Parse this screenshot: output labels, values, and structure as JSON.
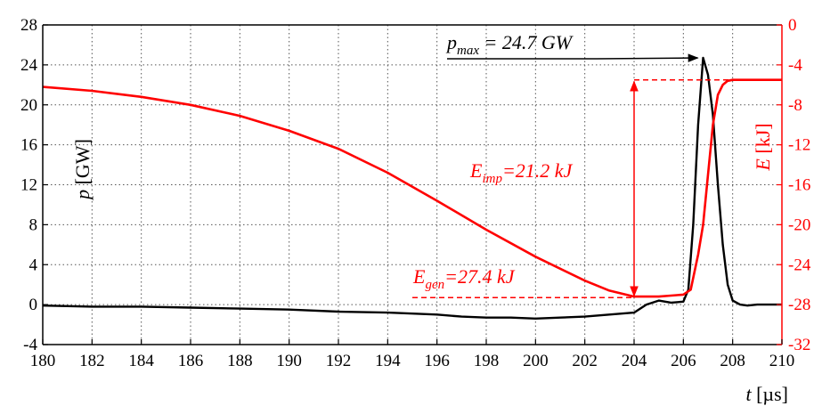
{
  "chart_data": {
    "type": "line",
    "xlabel": "t [µs]",
    "ylabel_left": "p [GW]",
    "ylabel_right": "E [kJ]",
    "xlim": [
      180,
      210
    ],
    "ylim_left": [
      -4,
      28
    ],
    "ylim_right": [
      -32,
      0
    ],
    "x_ticks": [
      180,
      182,
      184,
      186,
      188,
      190,
      192,
      194,
      196,
      198,
      200,
      202,
      204,
      206,
      208,
      210
    ],
    "y_left_ticks": [
      -4,
      0,
      4,
      8,
      12,
      16,
      20,
      24,
      28
    ],
    "y_right_ticks": [
      -32,
      -28,
      -24,
      -20,
      -16,
      -12,
      -8,
      -4,
      0
    ],
    "grid": true,
    "series": [
      {
        "name": "p",
        "axis": "left",
        "color": "#000000",
        "x": [
          180,
          182,
          184,
          186,
          188,
          190,
          192,
          194,
          195,
          196,
          197,
          198,
          199,
          200,
          201,
          202,
          203,
          204,
          204.5,
          205,
          205.5,
          206,
          206.2,
          206.4,
          206.6,
          206.8,
          207.0,
          207.2,
          207.4,
          207.6,
          207.8,
          208.0,
          208.3,
          208.6,
          209,
          210
        ],
        "y": [
          -0.1,
          -0.2,
          -0.2,
          -0.3,
          -0.4,
          -0.5,
          -0.7,
          -0.8,
          -0.9,
          -1.0,
          -1.2,
          -1.3,
          -1.3,
          -1.4,
          -1.3,
          -1.2,
          -1.0,
          -0.8,
          0.0,
          0.4,
          0.2,
          0.3,
          1.5,
          8.0,
          18.0,
          24.7,
          23.0,
          19.0,
          12.0,
          6.0,
          2.0,
          0.4,
          0.0,
          -0.1,
          0.0,
          0.0
        ]
      },
      {
        "name": "E",
        "axis": "right",
        "color": "#ff0000",
        "x": [
          180,
          182,
          184,
          186,
          188,
          190,
          192,
          194,
          196,
          198,
          200,
          202,
          203,
          204,
          204.5,
          205,
          205.5,
          206,
          206.3,
          206.6,
          206.8,
          207.0,
          207.2,
          207.4,
          207.6,
          207.8,
          208.0,
          208.5,
          209,
          210
        ],
        "y": [
          -6.2,
          -6.6,
          -7.2,
          -8.0,
          -9.1,
          -10.6,
          -12.4,
          -14.8,
          -17.6,
          -20.5,
          -23.2,
          -25.6,
          -26.6,
          -27.2,
          -27.2,
          -27.2,
          -27.1,
          -27.0,
          -26.5,
          -23.0,
          -20.0,
          -15.0,
          -10.0,
          -7.0,
          -6.0,
          -5.6,
          -5.5,
          -5.5,
          -5.5,
          -5.5
        ]
      }
    ],
    "annotations": {
      "p_max": {
        "base": "p",
        "sub": "max",
        "rest": " = 24.7 GW"
      },
      "E_imp": {
        "base": "E",
        "sub": "imp",
        "rest": "=21.2 kJ"
      },
      "E_gen": {
        "base": "E",
        "sub": "gen",
        "rest": "=27.4 kJ"
      }
    }
  }
}
